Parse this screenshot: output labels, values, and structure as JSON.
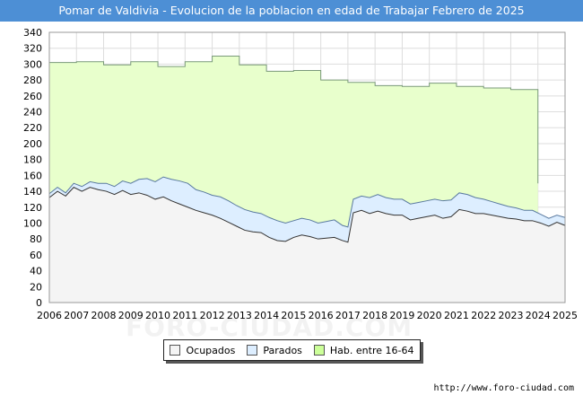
{
  "chart_data": {
    "type": "area",
    "title": "Pomar de Valdivia - Evolucion de la poblacion en edad de Trabajar Febrero de 2025",
    "xlabel": "",
    "ylabel": "",
    "xlim": [
      2006,
      2025
    ],
    "ylim": [
      0,
      340
    ],
    "yticks": [
      0,
      20,
      40,
      60,
      80,
      100,
      120,
      140,
      160,
      180,
      200,
      220,
      240,
      260,
      280,
      300,
      320,
      340
    ],
    "xticks": [
      2006,
      2007,
      2008,
      2009,
      2010,
      2011,
      2012,
      2013,
      2014,
      2015,
      2016,
      2017,
      2018,
      2019,
      2020,
      2021,
      2022,
      2023,
      2024,
      2025
    ],
    "grid": true,
    "legend_position": "bottom-center",
    "series": [
      {
        "name": "Hab. entre 16-64",
        "color": "#e8ffcc",
        "line_color": "#7a9a7a",
        "x": [
          2006,
          2007,
          2007,
          2008,
          2008,
          2009,
          2009,
          2010,
          2010,
          2011,
          2011,
          2012,
          2012,
          2013,
          2013,
          2014,
          2014,
          2015,
          2015,
          2016,
          2016,
          2017,
          2017,
          2018,
          2018,
          2019,
          2019,
          2020,
          2020,
          2021,
          2021,
          2022,
          2022,
          2023,
          2023,
          2024,
          2024
        ],
        "values": [
          302,
          302,
          303,
          303,
          299,
          299,
          303,
          303,
          297,
          297,
          303,
          303,
          310,
          310,
          299,
          299,
          291,
          291,
          292,
          292,
          280,
          280,
          277,
          277,
          273,
          273,
          272,
          272,
          276,
          276,
          272,
          272,
          270,
          270,
          268,
          268,
          150
        ]
      },
      {
        "name": "Parados",
        "color": "#ddeeff",
        "line_color": "#5a7aa0",
        "x": [
          2006,
          2006.3,
          2006.6,
          2006.9,
          2007.2,
          2007.5,
          2007.8,
          2008.1,
          2008.4,
          2008.7,
          2009.0,
          2009.3,
          2009.6,
          2009.9,
          2010.2,
          2010.5,
          2010.8,
          2011.1,
          2011.4,
          2011.7,
          2012.0,
          2012.3,
          2012.6,
          2012.9,
          2013.2,
          2013.5,
          2013.8,
          2014.1,
          2014.4,
          2014.7,
          2015.0,
          2015.3,
          2015.6,
          2015.9,
          2016.2,
          2016.5,
          2016.8,
          2017.0,
          2017.2,
          2017.5,
          2017.8,
          2018.1,
          2018.4,
          2018.7,
          2019.0,
          2019.3,
          2019.6,
          2019.9,
          2020.2,
          2020.5,
          2020.8,
          2021.1,
          2021.4,
          2021.7,
          2022.0,
          2022.3,
          2022.6,
          2022.9,
          2023.2,
          2023.5,
          2023.8,
          2024.1,
          2024.4,
          2024.7,
          2025
        ],
        "values": [
          137,
          145,
          138,
          150,
          146,
          152,
          150,
          150,
          146,
          153,
          150,
          155,
          156,
          152,
          158,
          155,
          153,
          150,
          142,
          139,
          135,
          133,
          128,
          122,
          117,
          114,
          112,
          107,
          103,
          100,
          103,
          106,
          104,
          100,
          102,
          104,
          97,
          95,
          130,
          134,
          132,
          136,
          132,
          130,
          130,
          124,
          126,
          128,
          130,
          128,
          129,
          138,
          136,
          132,
          130,
          127,
          124,
          121,
          119,
          116,
          116,
          111,
          106,
          110,
          107
        ]
      },
      {
        "name": "Ocupados",
        "color": "#f4f4f4",
        "line_color": "#333333",
        "x": [
          2006,
          2006.3,
          2006.6,
          2006.9,
          2007.2,
          2007.5,
          2007.8,
          2008.1,
          2008.4,
          2008.7,
          2009.0,
          2009.3,
          2009.6,
          2009.9,
          2010.2,
          2010.5,
          2010.8,
          2011.1,
          2011.4,
          2011.7,
          2012.0,
          2012.3,
          2012.6,
          2012.9,
          2013.2,
          2013.5,
          2013.8,
          2014.1,
          2014.4,
          2014.7,
          2015.0,
          2015.3,
          2015.6,
          2015.9,
          2016.2,
          2016.5,
          2016.8,
          2017.0,
          2017.2,
          2017.5,
          2017.8,
          2018.1,
          2018.4,
          2018.7,
          2019.0,
          2019.3,
          2019.6,
          2019.9,
          2020.2,
          2020.5,
          2020.8,
          2021.1,
          2021.4,
          2021.7,
          2022.0,
          2022.3,
          2022.6,
          2022.9,
          2023.2,
          2023.5,
          2023.8,
          2024.1,
          2024.4,
          2024.7,
          2025
        ],
        "values": [
          132,
          140,
          134,
          145,
          140,
          145,
          142,
          140,
          136,
          141,
          136,
          138,
          135,
          130,
          133,
          128,
          124,
          120,
          116,
          113,
          110,
          106,
          101,
          96,
          91,
          89,
          88,
          82,
          78,
          77,
          82,
          85,
          83,
          80,
          81,
          82,
          78,
          76,
          113,
          116,
          112,
          115,
          112,
          110,
          110,
          104,
          106,
          108,
          110,
          106,
          108,
          117,
          115,
          112,
          112,
          110,
          108,
          106,
          105,
          103,
          103,
          100,
          96,
          101,
          97
        ]
      }
    ]
  },
  "legend": {
    "items": [
      {
        "label": "Ocupados",
        "color": "#f4f4f4"
      },
      {
        "label": "Parados",
        "color": "#ddeeff"
      },
      {
        "label": "Hab. entre 16-64",
        "color": "#ccff99"
      }
    ]
  },
  "source": "http://www.foro-ciudad.com",
  "watermark": "FORO-CIUDAD.COM"
}
